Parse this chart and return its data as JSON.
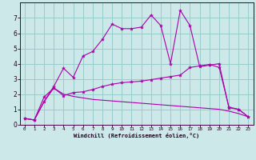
{
  "xlabel": "Windchill (Refroidissement éolien,°C)",
  "bg_color": "#cce8e8",
  "line_color": "#aa00aa",
  "grid_color": "#99cccc",
  "xlim": [
    -0.5,
    23.5
  ],
  "ylim": [
    0,
    8
  ],
  "xticks": [
    0,
    1,
    2,
    3,
    4,
    5,
    6,
    7,
    8,
    9,
    10,
    11,
    12,
    13,
    14,
    15,
    16,
    17,
    18,
    19,
    20,
    21,
    22,
    23
  ],
  "yticks": [
    0,
    1,
    2,
    3,
    4,
    5,
    6,
    7
  ],
  "curve1_x": [
    0,
    1,
    2,
    3,
    4,
    5,
    6,
    7,
    8,
    9,
    10,
    11,
    12,
    13,
    14,
    15,
    16,
    17,
    18,
    19,
    20,
    21,
    22,
    23
  ],
  "curve1_y": [
    0.4,
    0.3,
    1.5,
    2.5,
    3.7,
    3.1,
    4.5,
    4.8,
    5.6,
    6.6,
    6.3,
    6.3,
    6.4,
    7.2,
    6.5,
    4.0,
    7.5,
    6.5,
    3.8,
    3.9,
    4.0,
    1.1,
    1.0,
    0.5
  ],
  "curve2_x": [
    0,
    1,
    2,
    3,
    4,
    5,
    6,
    7,
    8,
    9,
    10,
    11,
    12,
    13,
    14,
    15,
    16,
    17,
    18,
    19,
    20,
    21,
    22,
    23
  ],
  "curve2_y": [
    0.4,
    0.3,
    1.8,
    2.4,
    1.9,
    2.1,
    2.15,
    2.3,
    2.5,
    2.65,
    2.75,
    2.8,
    2.85,
    2.95,
    3.05,
    3.15,
    3.25,
    3.75,
    3.85,
    3.95,
    3.75,
    1.15,
    1.0,
    0.5
  ],
  "curve3_x": [
    0,
    1,
    2,
    3,
    4,
    5,
    6,
    7,
    8,
    9,
    10,
    11,
    12,
    13,
    14,
    15,
    16,
    17,
    18,
    19,
    20,
    21,
    22,
    23
  ],
  "curve3_y": [
    0.4,
    0.3,
    1.5,
    2.4,
    2.0,
    1.85,
    1.75,
    1.65,
    1.6,
    1.55,
    1.5,
    1.45,
    1.4,
    1.35,
    1.3,
    1.25,
    1.2,
    1.15,
    1.1,
    1.05,
    1.0,
    0.88,
    0.72,
    0.5
  ]
}
